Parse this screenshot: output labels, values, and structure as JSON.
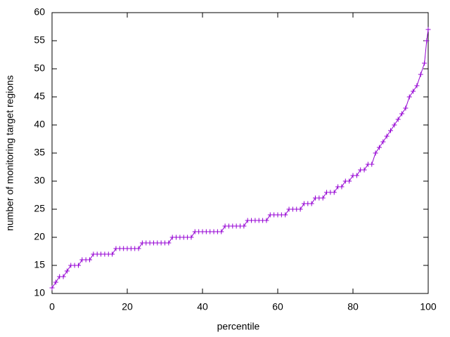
{
  "chart_data": {
    "type": "line",
    "x_label": "percentile",
    "y_label": "number of monitoring target regions",
    "x": [
      0,
      1,
      2,
      3,
      4,
      5,
      6,
      7,
      8,
      9,
      10,
      11,
      12,
      13,
      14,
      15,
      16,
      17,
      18,
      19,
      20,
      21,
      22,
      23,
      24,
      25,
      26,
      27,
      28,
      29,
      30,
      31,
      32,
      33,
      34,
      35,
      36,
      37,
      38,
      39,
      40,
      41,
      42,
      43,
      44,
      45,
      46,
      47,
      48,
      49,
      50,
      51,
      52,
      53,
      54,
      55,
      56,
      57,
      58,
      59,
      60,
      61,
      62,
      63,
      64,
      65,
      66,
      67,
      68,
      69,
      70,
      71,
      72,
      73,
      74,
      75,
      76,
      77,
      78,
      79,
      80,
      81,
      82,
      83,
      84,
      85,
      86,
      87,
      88,
      89,
      90,
      91,
      92,
      93,
      94,
      95,
      96,
      97,
      98,
      99,
      99.6,
      100
    ],
    "series": [
      {
        "color": "#9400d3",
        "values": [
          11,
          12,
          13,
          13,
          14,
          15,
          15,
          15,
          16,
          16,
          16,
          17,
          17,
          17,
          17,
          17,
          17,
          18,
          18,
          18,
          18,
          18,
          18,
          18,
          19,
          19,
          19,
          19,
          19,
          19,
          19,
          19,
          20,
          20,
          20,
          20,
          20,
          20,
          21,
          21,
          21,
          21,
          21,
          21,
          21,
          21,
          22,
          22,
          22,
          22,
          22,
          22,
          23,
          23,
          23,
          23,
          23,
          23,
          24,
          24,
          24,
          24,
          24,
          25,
          25,
          25,
          25,
          26,
          26,
          26,
          27,
          27,
          27,
          28,
          28,
          28,
          29,
          29,
          30,
          30,
          31,
          31,
          32,
          32,
          33,
          33,
          35,
          36,
          37,
          38,
          39,
          40,
          41,
          42,
          43,
          45,
          46,
          47,
          49,
          51,
          55,
          57
        ]
      }
    ],
    "xlim": [
      0,
      100
    ],
    "xticks": [
      0,
      20,
      40,
      60,
      80,
      100
    ],
    "ylim": [
      10,
      60
    ],
    "yticks": [
      10,
      15,
      20,
      25,
      30,
      35,
      40,
      45,
      50,
      55,
      60
    ],
    "grid": false
  }
}
